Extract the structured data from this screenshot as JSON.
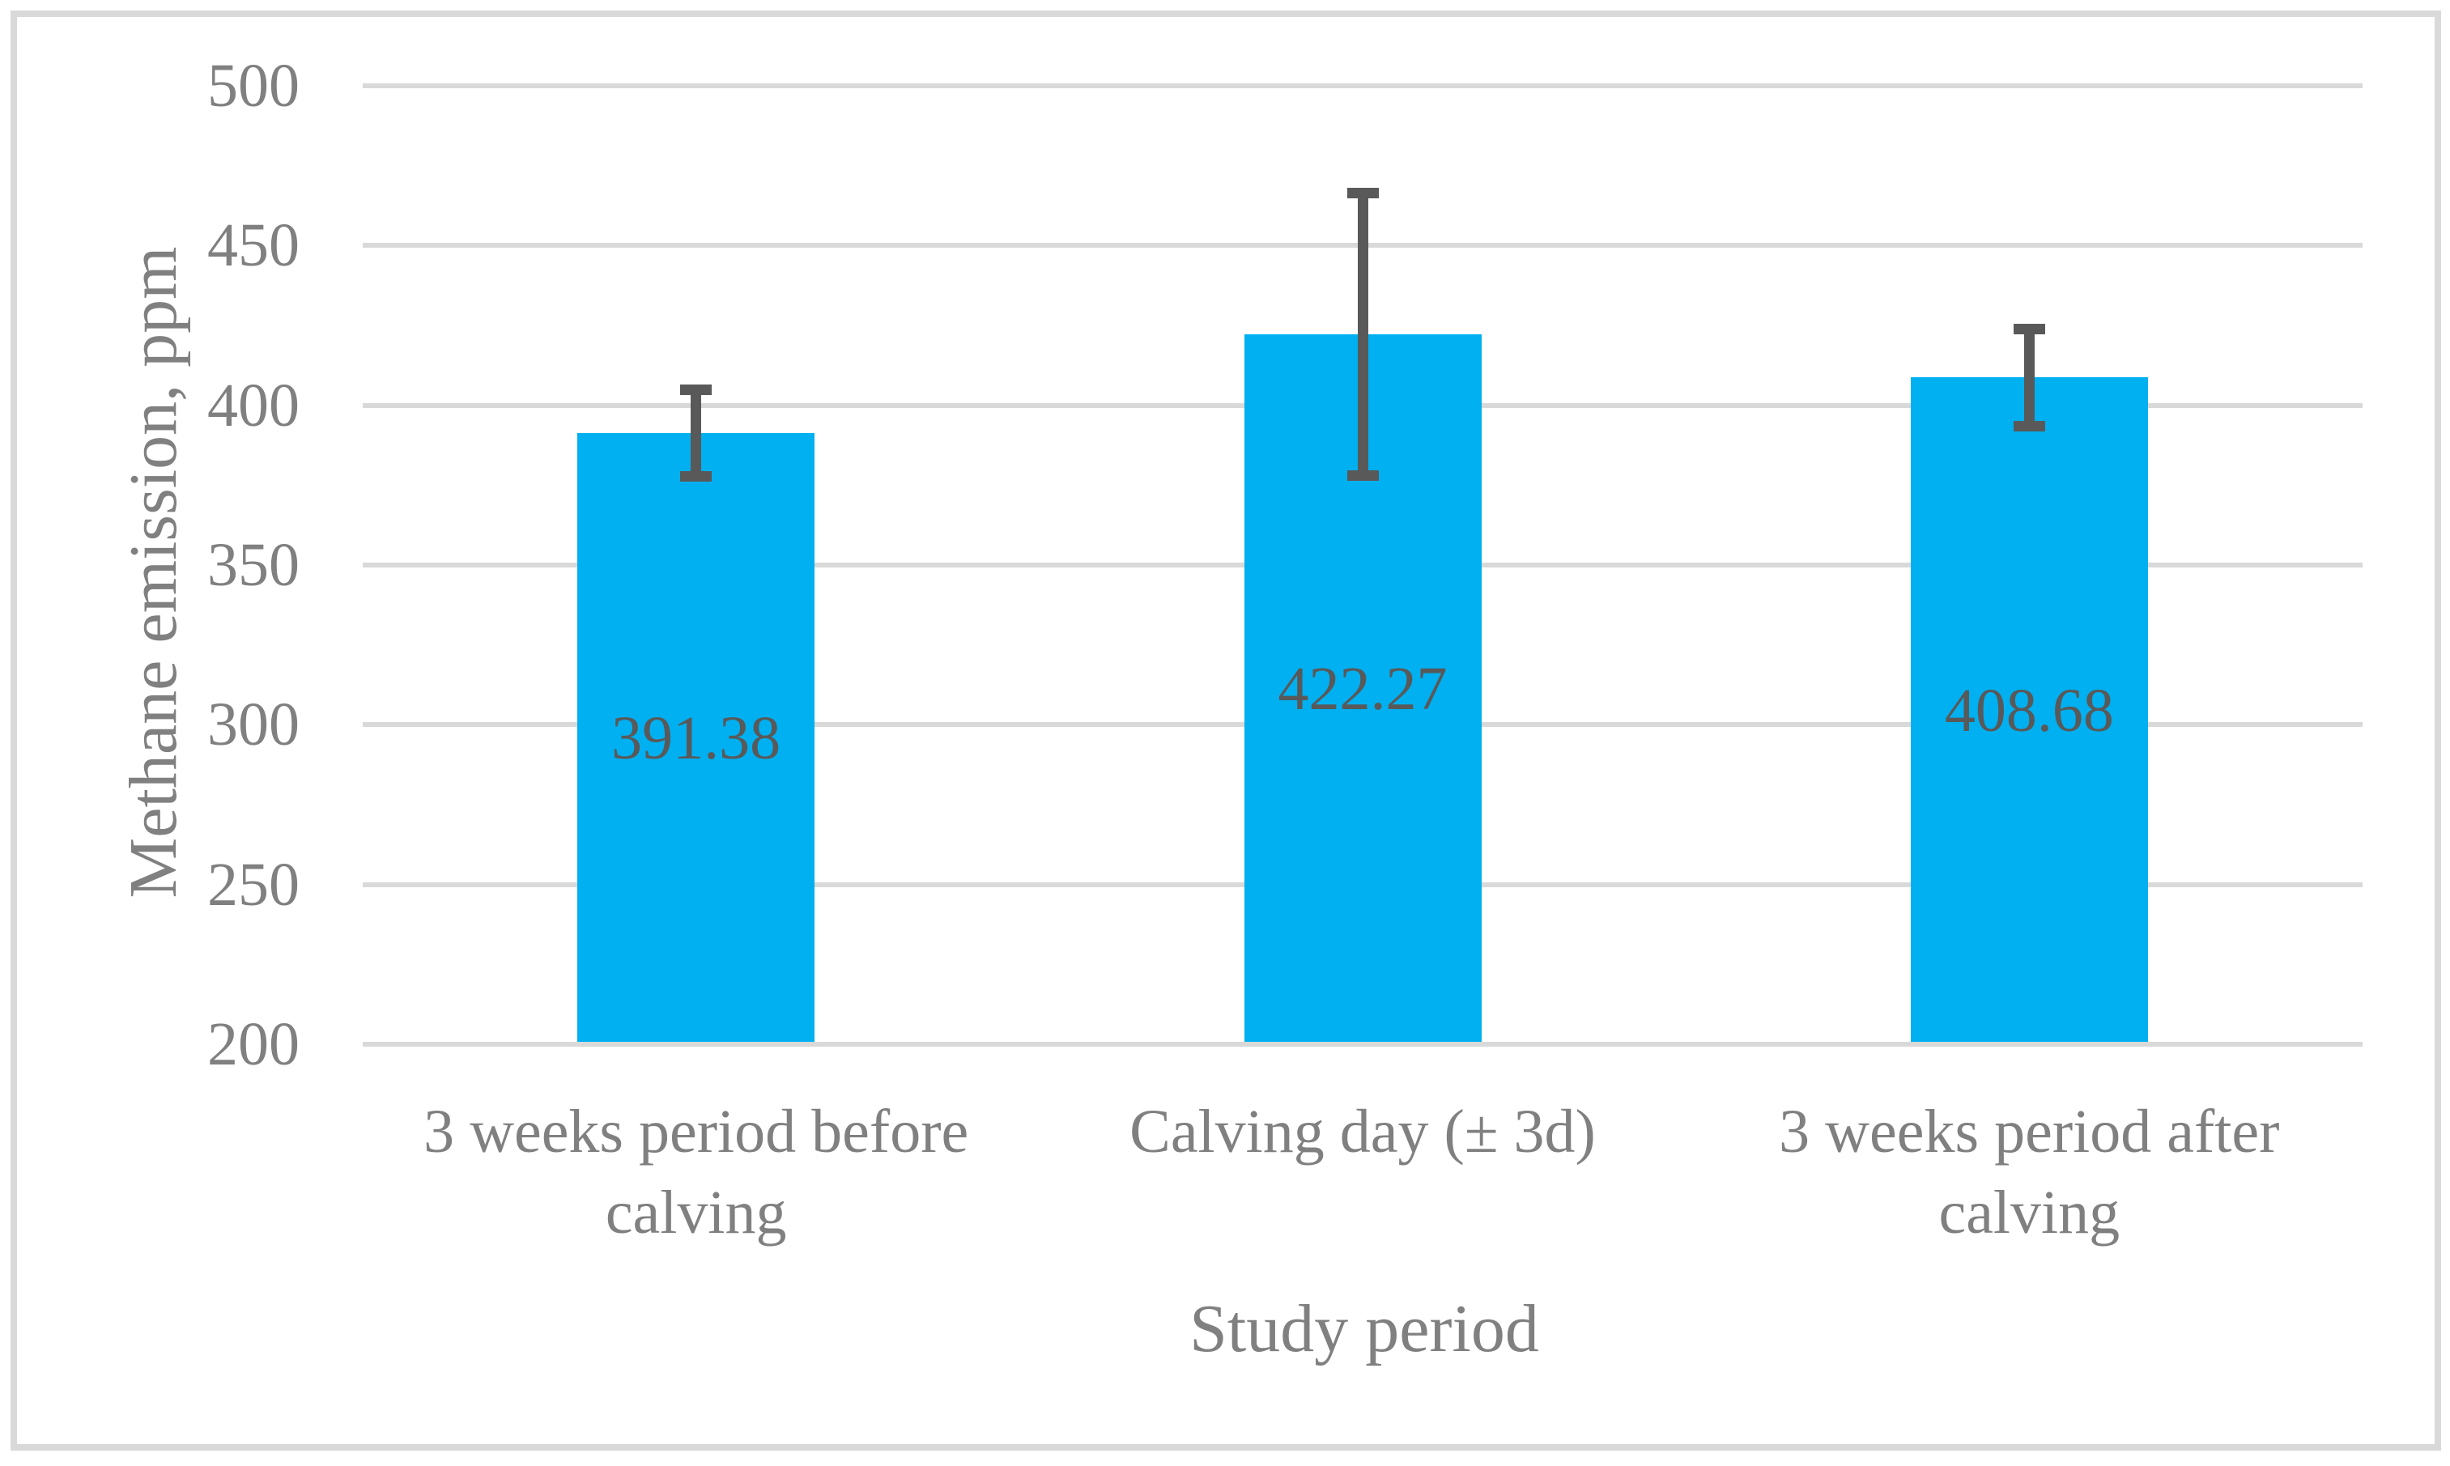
{
  "chart_data": {
    "type": "bar",
    "title": "",
    "categories": [
      "3 weeks period before calving",
      "Calving day (± 3d)",
      "3 weeks period after calving"
    ],
    "values": [
      391.38,
      422.27,
      408.68
    ],
    "data_labels": [
      "391.38",
      "422.27",
      "408.68"
    ],
    "error_bars": {
      "plus": [
        13.6,
        44.2,
        15.3
      ],
      "minus": [
        13.6,
        44.2,
        15.3
      ]
    },
    "xlabel": "Study period",
    "ylabel": "Methane emission, ppm",
    "ylim": [
      200,
      500
    ],
    "ytick_interval": 50,
    "yticks": [
      500,
      450,
      400,
      350,
      300,
      250,
      200
    ],
    "grid": true,
    "legend": false,
    "colors": {
      "bar": "#00B0F0",
      "error_bar": "#595959",
      "gridline": "#D9D9D9",
      "tick_text": "#808080",
      "axis_title_text": "#808080",
      "data_label_text": "#595959",
      "background": "#FFFFFF"
    }
  }
}
